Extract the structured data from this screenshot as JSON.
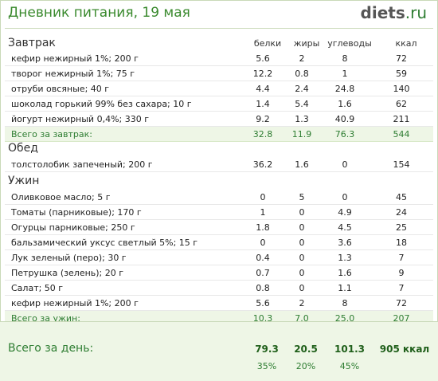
{
  "header": {
    "title": "Дневник питания, 19 мая",
    "logo_main": "diets",
    "logo_tld": ".ru"
  },
  "columns": {
    "protein": "белки",
    "fat": "жиры",
    "carbs": "углеводы",
    "kcal": "ккал"
  },
  "breakfast": {
    "label": "Завтрак",
    "rows": [
      {
        "name": "кефир нежирный 1%; 200 г",
        "p": "5.6",
        "f": "2",
        "c": "8",
        "k": "72"
      },
      {
        "name": "творог нежирный 1%; 75 г",
        "p": "12.2",
        "f": "0.8",
        "c": "1",
        "k": "59"
      },
      {
        "name": "отруби овсяные; 40 г",
        "p": "4.4",
        "f": "2.4",
        "c": "24.8",
        "k": "140"
      },
      {
        "name": "шоколад горький 99% без сахара; 10 г",
        "p": "1.4",
        "f": "5.4",
        "c": "1.6",
        "k": "62"
      },
      {
        "name": "йогурт нежирный 0,4%; 330 г",
        "p": "9.2",
        "f": "1.3",
        "c": "40.9",
        "k": "211"
      }
    ],
    "total": {
      "name": "Всего за завтрак:",
      "p": "32.8",
      "f": "11.9",
      "c": "76.3",
      "k": "544"
    }
  },
  "lunch": {
    "label": "Обед",
    "rows": [
      {
        "name": "толстолобик запеченый; 200 г",
        "p": "36.2",
        "f": "1.6",
        "c": "0",
        "k": "154"
      }
    ]
  },
  "dinner": {
    "label": "Ужин",
    "rows": [
      {
        "name": "Оливковое масло; 5 г",
        "p": "0",
        "f": "5",
        "c": "0",
        "k": "45"
      },
      {
        "name": "Томаты (парниковые); 170 г",
        "p": "1",
        "f": "0",
        "c": "4.9",
        "k": "24"
      },
      {
        "name": "Огурцы парниковые; 250 г",
        "p": "1.8",
        "f": "0",
        "c": "4.5",
        "k": "25"
      },
      {
        "name": "бальзамический уксус светлый 5%; 15 г",
        "p": "0",
        "f": "0",
        "c": "3.6",
        "k": "18"
      },
      {
        "name": "Лук зеленый (перо); 30 г",
        "p": "0.4",
        "f": "0",
        "c": "1.3",
        "k": "7"
      },
      {
        "name": "Петрушка (зелень); 20 г",
        "p": "0.7",
        "f": "0",
        "c": "1.6",
        "k": "9"
      },
      {
        "name": "Салат; 50 г",
        "p": "0.8",
        "f": "0",
        "c": "1.1",
        "k": "7"
      },
      {
        "name": "кефир нежирный 1%; 200 г",
        "p": "5.6",
        "f": "2",
        "c": "8",
        "k": "72"
      }
    ],
    "total": {
      "name": "Всего за ужин:",
      "p": "10.3",
      "f": "7.0",
      "c": "25.0",
      "k": "207"
    }
  },
  "day": {
    "label": "Всего за день:",
    "p": "79.3",
    "f": "20.5",
    "c": "101.3",
    "k": "905 ккал",
    "pp": "35%",
    "fp": "20%",
    "cp": "45%"
  }
}
